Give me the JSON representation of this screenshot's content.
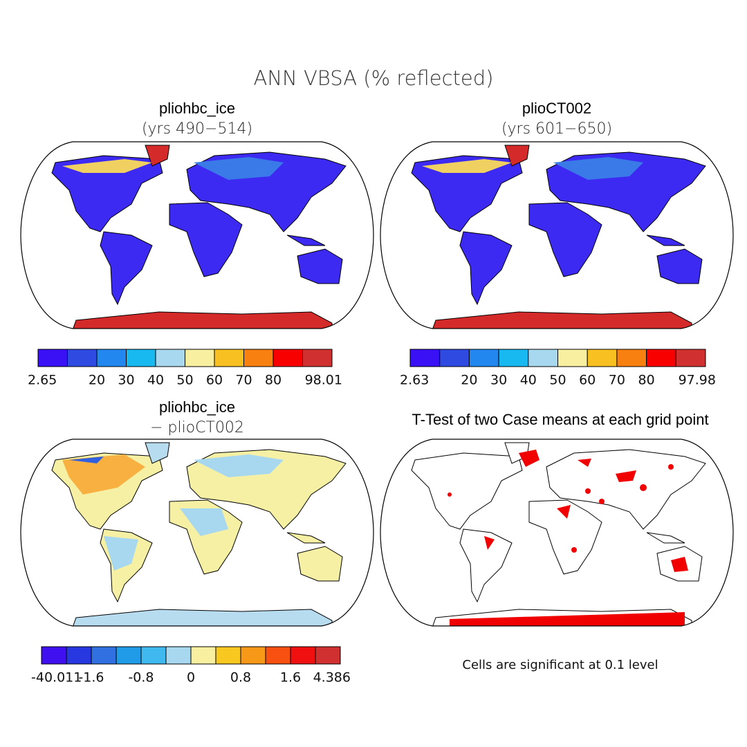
{
  "title": "ANN VBSA (% reflected)",
  "panels": [
    {
      "title": "pliohbc_ice",
      "subtitle": "(yrs 490−514)",
      "colorbar": {
        "colors": [
          "#3a10f5",
          "#2f4ae0",
          "#2288f0",
          "#18b8f0",
          "#a8d8f0",
          "#f8f0a0",
          "#f8c020",
          "#f88010",
          "#f80000",
          "#d03030"
        ],
        "ticks": [
          2.65,
          null,
          20,
          30,
          40,
          50,
          60,
          70,
          80,
          null,
          98.01
        ]
      }
    },
    {
      "title": "plioCT002",
      "subtitle": "(yrs 601−650)",
      "colorbar": {
        "colors": [
          "#3a10f5",
          "#2f4ae0",
          "#2288f0",
          "#18b8f0",
          "#a8d8f0",
          "#f8f0a0",
          "#f8c020",
          "#f88010",
          "#f80000",
          "#d03030"
        ],
        "ticks": [
          2.63,
          null,
          20,
          30,
          40,
          50,
          60,
          70,
          80,
          null,
          97.98
        ]
      }
    },
    {
      "title": "pliohbc_ice",
      "subtitle": "− plioCT002",
      "colorbar": {
        "colors": [
          "#4010f0",
          "#2838e0",
          "#3070e0",
          "#1f9be8",
          "#40b8f0",
          "#a8d8f0",
          "#f8f0a0",
          "#f8c820",
          "#f89818",
          "#f85010",
          "#f01010",
          "#d03030"
        ],
        "ticks": [
          -40.011,
          null,
          -1.6,
          null,
          -0.8,
          null,
          0,
          null,
          0.8,
          null,
          1.6,
          null,
          4.386
        ]
      }
    },
    {
      "title": "T-Test of two Case means at each grid point",
      "note": "Cells are significant at 0.1 level"
    }
  ]
}
